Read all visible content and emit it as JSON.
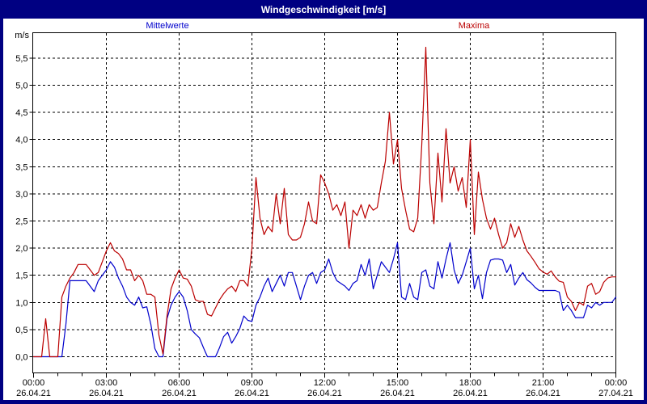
{
  "window": {
    "title": "Windgeschwindigkeit [m/s]"
  },
  "colors": {
    "titlebar": "#000082",
    "border": "#000082",
    "background": "#ffffff",
    "axis": "#000000",
    "mean_line": "#0000cc",
    "max_line": "#bb0000"
  },
  "chart_data": {
    "type": "line",
    "title": "Windgeschwindigkeit [m/s]",
    "ylabel": "m/s",
    "ylim": [
      0,
      5.5
    ],
    "y_tick_step": 0.5,
    "grid": "dashed",
    "legend_position": "top",
    "x_range_hours": 24,
    "x_interval_minutes": 10,
    "x_minor_tick_hours": 1,
    "x_major_tick_hours": 3,
    "x_ticks": [
      {
        "time": "00:00",
        "date": "26.04.21"
      },
      {
        "time": "03:00",
        "date": "26.04.21"
      },
      {
        "time": "06:00",
        "date": "26.04.21"
      },
      {
        "time": "09:00",
        "date": "26.04.21"
      },
      {
        "time": "12:00",
        "date": "26.04.21"
      },
      {
        "time": "15:00",
        "date": "26.04.21"
      },
      {
        "time": "18:00",
        "date": "26.04.21"
      },
      {
        "time": "21:00",
        "date": "26.04.21"
      },
      {
        "time": "00:00",
        "date": "27.04.21"
      }
    ],
    "series": [
      {
        "name": "Mittelwerte",
        "color": "#0000cc",
        "values": [
          0,
          0,
          0,
          0,
          0,
          0,
          0,
          0,
          0.6,
          1.4,
          1.4,
          1.4,
          1.4,
          1.4,
          1.3,
          1.2,
          1.4,
          1.5,
          1.6,
          1.75,
          1.65,
          1.45,
          1.3,
          1.1,
          1.0,
          0.95,
          1.1,
          0.9,
          0.92,
          0.6,
          0.15,
          0,
          0,
          0.7,
          0.95,
          1.1,
          1.2,
          1.1,
          0.85,
          0.5,
          0.42,
          0.35,
          0.17,
          0,
          0,
          0,
          0.17,
          0.37,
          0.45,
          0.25,
          0.37,
          0.52,
          0.75,
          0.67,
          0.65,
          0.95,
          1.1,
          1.3,
          1.45,
          1.2,
          1.35,
          1.5,
          1.3,
          1.55,
          1.55,
          1.3,
          1.05,
          1.3,
          1.5,
          1.55,
          1.35,
          1.55,
          1.6,
          1.8,
          1.55,
          1.4,
          1.35,
          1.3,
          1.22,
          1.35,
          1.4,
          1.7,
          1.5,
          1.8,
          1.25,
          1.5,
          1.75,
          1.65,
          1.55,
          1.8,
          2.1,
          1.1,
          1.05,
          1.35,
          1.1,
          1.05,
          1.55,
          1.6,
          1.3,
          1.25,
          1.75,
          1.45,
          1.8,
          2.1,
          1.6,
          1.35,
          1.5,
          1.75,
          2.0,
          1.25,
          1.5,
          1.07,
          1.55,
          1.78,
          1.8,
          1.8,
          1.78,
          1.55,
          1.7,
          1.32,
          1.45,
          1.55,
          1.42,
          1.36,
          1.28,
          1.22,
          1.22,
          1.22,
          1.22,
          1.22,
          1.19,
          0.85,
          0.95,
          0.85,
          0.72,
          0.72,
          0.72,
          0.95,
          0.9,
          1.0,
          0.95,
          1.0,
          1.0,
          1.0,
          1.1
        ]
      },
      {
        "name": "Maxima",
        "color": "#bb0000",
        "values": [
          0,
          0,
          0,
          0.7,
          0,
          0,
          0,
          1.1,
          1.3,
          1.45,
          1.55,
          1.7,
          1.7,
          1.7,
          1.6,
          1.5,
          1.55,
          1.75,
          1.95,
          2.1,
          1.95,
          1.9,
          1.8,
          1.6,
          1.6,
          1.4,
          1.5,
          1.4,
          1.15,
          1.15,
          1.1,
          0.4,
          0.05,
          0.75,
          1.25,
          1.45,
          1.6,
          1.45,
          1.43,
          1.3,
          1.05,
          1.02,
          1.02,
          0.78,
          0.75,
          0.9,
          1.05,
          1.16,
          1.25,
          1.3,
          1.2,
          1.4,
          1.4,
          1.3,
          2.0,
          3.3,
          2.55,
          2.25,
          2.4,
          2.3,
          3.0,
          2.45,
          3.1,
          2.25,
          2.15,
          2.15,
          2.2,
          2.45,
          2.85,
          2.5,
          2.45,
          3.35,
          3.2,
          3.0,
          2.7,
          2.8,
          2.6,
          2.85,
          2.0,
          2.7,
          2.6,
          2.8,
          2.55,
          2.8,
          2.7,
          2.75,
          3.2,
          3.6,
          4.5,
          3.55,
          4.0,
          3.1,
          2.7,
          2.35,
          2.3,
          2.55,
          3.9,
          5.7,
          3.2,
          2.45,
          3.75,
          2.85,
          4.2,
          3.2,
          3.5,
          3.05,
          3.3,
          2.75,
          4.0,
          2.25,
          3.4,
          2.9,
          2.55,
          2.35,
          2.55,
          2.25,
          2.0,
          2.1,
          2.45,
          2.2,
          2.4,
          2.15,
          1.95,
          1.85,
          1.74,
          1.62,
          1.56,
          1.52,
          1.58,
          1.47,
          1.39,
          1.37,
          1.1,
          1.02,
          0.85,
          1.0,
          0.95,
          1.3,
          1.35,
          1.15,
          1.2,
          1.37,
          1.45,
          1.47,
          1.47
        ]
      }
    ]
  }
}
